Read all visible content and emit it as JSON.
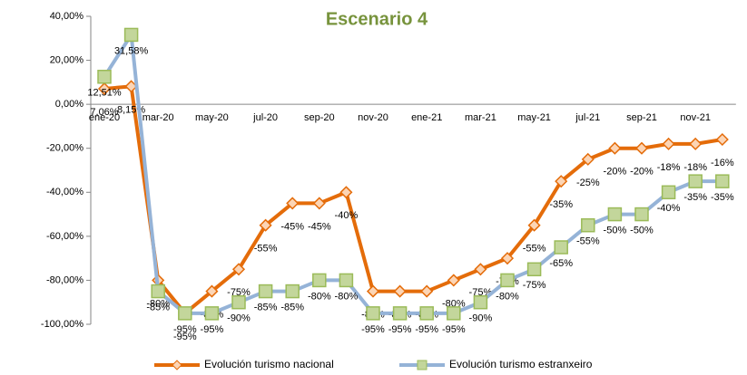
{
  "chart_data": {
    "type": "line",
    "title": "Escenario 4",
    "categories": [
      "ene-20",
      null,
      "mar-20",
      null,
      "may-20",
      null,
      "jul-20",
      null,
      "sep-20",
      null,
      "nov-20",
      null,
      "ene-21",
      null,
      "mar-21",
      null,
      "may-21",
      null,
      "jul-21",
      null,
      "sep-21",
      null,
      "nov-21",
      null
    ],
    "series": [
      {
        "name": "Evolución turismo nacional",
        "color": "#e46c0a",
        "values": [
          7.06,
          8.15,
          -80,
          -95,
          -85,
          -75,
          -55,
          -45,
          -45,
          -40,
          -85,
          -85,
          -85,
          -80,
          -75,
          -70,
          -55,
          -35,
          -25,
          -20,
          -20,
          -18,
          -18,
          -16
        ],
        "value_labels": [
          "7,06%",
          "8,15%",
          "-80%",
          "-95%",
          "-85%",
          "-75%",
          "-55%",
          "-45%",
          "-45%",
          "-40%",
          "-85%",
          "-85%",
          "-85%",
          "-80%",
          "-75%",
          "-70%",
          "-55%",
          "-35%",
          "-25%",
          "-20%",
          "-20%",
          "-18%",
          "-18%",
          "-16%"
        ]
      },
      {
        "name": "Evolución turismo estranxeiro",
        "color": "#95b3d7",
        "values": [
          12.51,
          31.58,
          -85,
          -95,
          -95,
          -90,
          -85,
          -85,
          -80,
          -80,
          -95,
          -95,
          -95,
          -95,
          -90,
          -80,
          -75,
          -65,
          -55,
          -50,
          -50,
          -40,
          -35,
          -35
        ],
        "value_labels": [
          "12,51%",
          "31,58%",
          "-85%",
          "-95%",
          "-95%",
          "-90%",
          "-85%",
          "-85%",
          "-80%",
          "-80%",
          "-95%",
          "-95%",
          "-95%",
          "-95%",
          "-90%",
          "-80%",
          "-75%",
          "-65%",
          "-55%",
          "-50%",
          "-50%",
          "-40%",
          "-35%",
          "-35%"
        ]
      }
    ],
    "ylim": [
      -100,
      40
    ],
    "yticks": [
      {
        "value": -100,
        "label": "-100,00%"
      },
      {
        "value": -80,
        "label": "-80,00%"
      },
      {
        "value": -60,
        "label": "-60,00%"
      },
      {
        "value": -40,
        "label": "-40,00%"
      },
      {
        "value": -20,
        "label": "-20,00%"
      },
      {
        "value": 0,
        "label": "0,00%"
      },
      {
        "value": 20,
        "label": "20,00%"
      },
      {
        "value": 40,
        "label": "40,00%"
      }
    ],
    "legend": "bottom"
  }
}
